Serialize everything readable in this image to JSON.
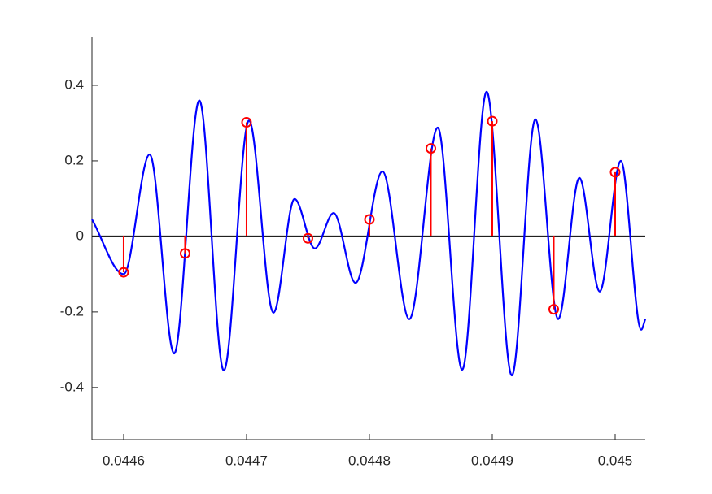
{
  "chart_data": {
    "type": "line-stem",
    "xlim": [
      0.0445742,
      0.0450245
    ],
    "ylim": [
      -0.538,
      0.529
    ],
    "xticks": [
      0.0446,
      0.0447,
      0.0448,
      0.0449,
      0.045
    ],
    "yticks": [
      -0.4,
      -0.2,
      0,
      0.2,
      0.4
    ],
    "baseline_color": "#000000",
    "series": [
      {
        "type": "line",
        "color": "#0000ff",
        "x": [
          0.0445742,
          0.0446,
          0.0446212,
          0.0446411,
          0.0446616,
          0.0446815,
          0.044702,
          0.0447219,
          0.0447391,
          0.0447556,
          0.0447709,
          0.0447887,
          0.0448106,
          0.0448325,
          0.0448556,
          0.0448755,
          0.0448954,
          0.0449159,
          0.0449351,
          0.0449536,
          0.0449709,
          0.0449874,
          0.0450046,
          0.0450212,
          0.0450245
        ],
        "values": [
          0.045,
          -0.1,
          0.217,
          -0.31,
          0.36,
          -0.355,
          0.307,
          -0.202,
          0.099,
          -0.032,
          0.062,
          -0.123,
          0.172,
          -0.219,
          0.288,
          -0.353,
          0.383,
          -0.368,
          0.31,
          -0.219,
          0.155,
          -0.146,
          0.2,
          -0.247,
          -0.219
        ]
      },
      {
        "type": "stem",
        "color": "#ff0000",
        "x": [
          0.0446,
          0.04465,
          0.0447,
          0.04475,
          0.0448,
          0.04485,
          0.0449,
          0.04495,
          0.045
        ],
        "values": [
          -0.095,
          -0.045,
          0.302,
          -0.005,
          0.045,
          0.233,
          0.305,
          -0.193,
          0.17
        ]
      }
    ]
  }
}
